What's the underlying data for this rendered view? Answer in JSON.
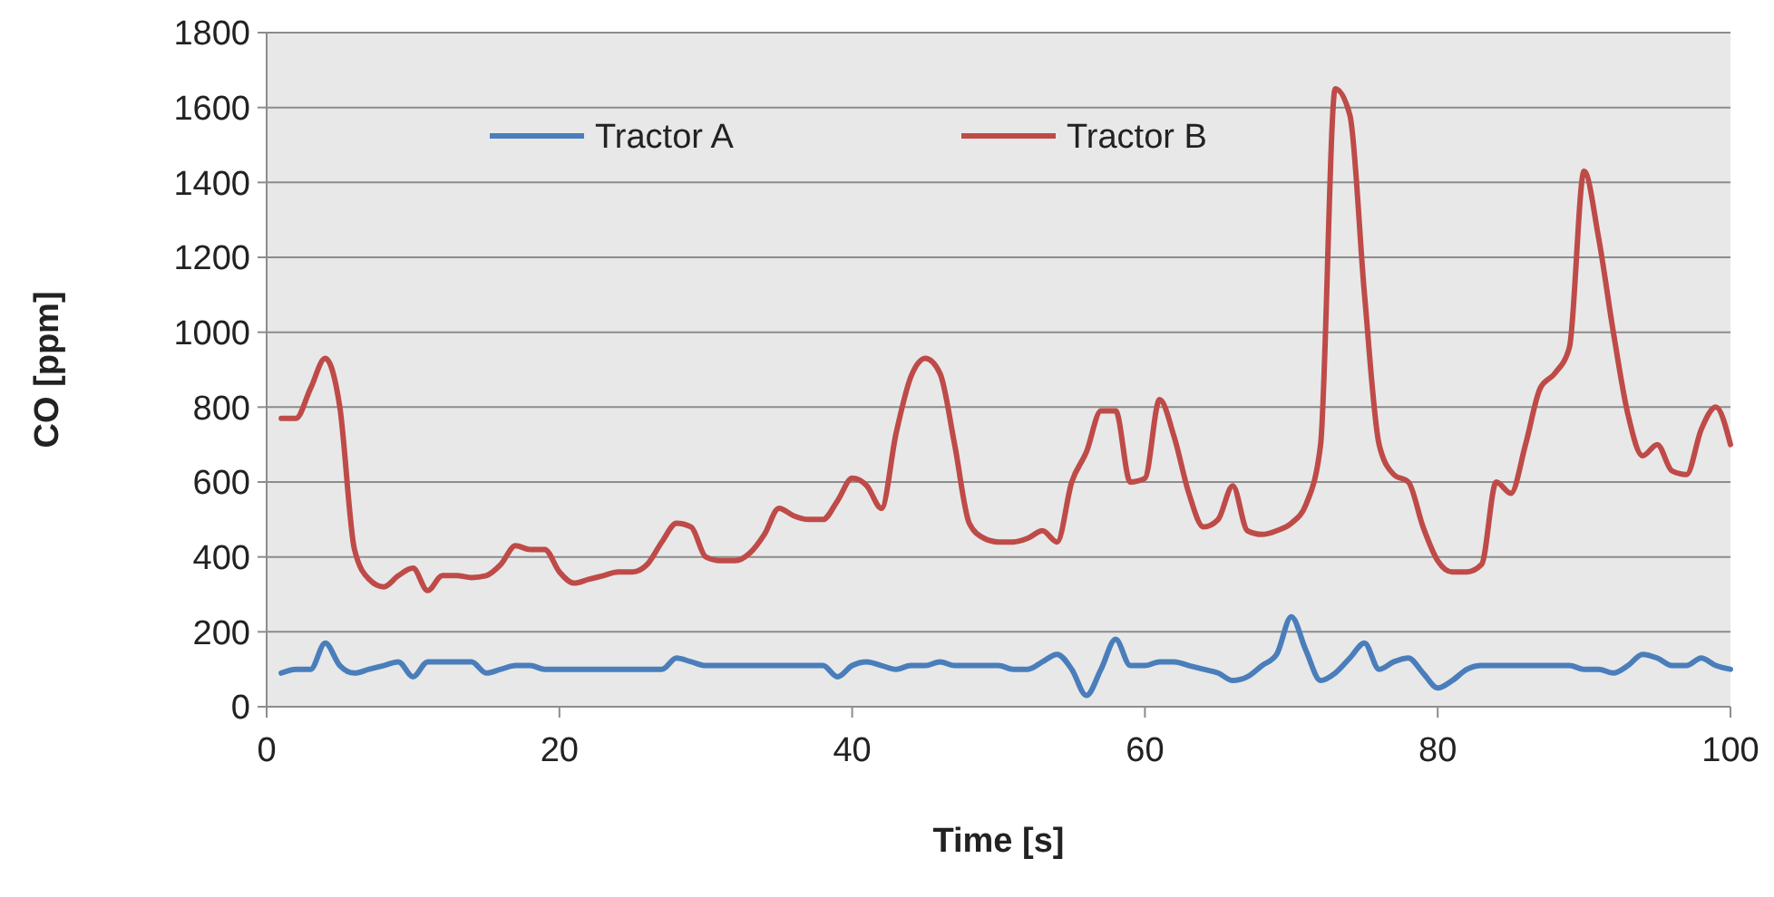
{
  "chart_data": {
    "type": "line",
    "xlabel": "Time [s]",
    "ylabel": "CO [ppm]",
    "x": [
      1,
      2,
      3,
      4,
      5,
      6,
      7,
      8,
      9,
      10,
      11,
      12,
      13,
      14,
      15,
      16,
      17,
      18,
      19,
      20,
      21,
      22,
      23,
      24,
      25,
      26,
      27,
      28,
      29,
      30,
      31,
      32,
      33,
      34,
      35,
      36,
      37,
      38,
      39,
      40,
      41,
      42,
      43,
      44,
      45,
      46,
      47,
      48,
      49,
      50,
      51,
      52,
      53,
      54,
      55,
      56,
      57,
      58,
      59,
      60,
      61,
      62,
      63,
      64,
      65,
      66,
      67,
      68,
      69,
      70,
      71,
      72,
      73,
      74,
      75,
      76,
      77,
      78,
      79,
      80,
      81,
      82,
      83,
      84,
      85,
      86,
      87,
      88,
      89,
      90,
      91,
      92,
      93,
      94,
      95,
      96,
      97,
      98,
      99,
      100
    ],
    "series": [
      {
        "name": "Tractor A",
        "color": "#4a7ebb",
        "values": [
          90,
          100,
          100,
          170,
          110,
          90,
          100,
          110,
          120,
          80,
          120,
          120,
          120,
          120,
          90,
          100,
          110,
          110,
          100,
          100,
          100,
          100,
          100,
          100,
          100,
          100,
          100,
          130,
          120,
          110,
          110,
          110,
          110,
          110,
          110,
          110,
          110,
          110,
          80,
          110,
          120,
          110,
          100,
          110,
          110,
          120,
          110,
          110,
          110,
          110,
          100,
          100,
          120,
          140,
          100,
          30,
          100,
          180,
          110,
          110,
          120,
          120,
          110,
          100,
          90,
          70,
          80,
          110,
          140,
          240,
          150,
          70,
          90,
          130,
          170,
          100,
          120,
          130,
          90,
          50,
          70,
          100,
          110,
          110,
          110,
          110,
          110,
          110,
          110,
          100,
          100,
          90,
          110,
          140,
          130,
          110,
          110,
          130,
          110,
          100
        ]
      },
      {
        "name": "Tractor B",
        "color": "#be4b48",
        "values": [
          770,
          770,
          850,
          930,
          800,
          420,
          340,
          320,
          350,
          370,
          310,
          350,
          350,
          345,
          350,
          380,
          430,
          420,
          420,
          360,
          330,
          340,
          350,
          360,
          360,
          380,
          440,
          490,
          480,
          400,
          390,
          390,
          410,
          460,
          530,
          510,
          500,
          500,
          550,
          610,
          590,
          530,
          730,
          880,
          930,
          890,
          700,
          490,
          450,
          440,
          440,
          450,
          470,
          440,
          600,
          680,
          790,
          790,
          600,
          610,
          820,
          720,
          570,
          480,
          500,
          590,
          470,
          460,
          470,
          490,
          540,
          700,
          1650,
          1580,
          1100,
          700,
          620,
          600,
          480,
          390,
          360,
          360,
          380,
          600,
          570,
          700,
          850,
          890,
          960,
          1430,
          1250,
          1000,
          780,
          670,
          700,
          630,
          620,
          740,
          800,
          700
        ]
      }
    ],
    "xlim": [
      0,
      100
    ],
    "xticks": [
      0,
      20,
      40,
      60,
      80,
      100
    ],
    "ylim": [
      0,
      1800
    ],
    "yticks": [
      0,
      200,
      400,
      600,
      800,
      1000,
      1200,
      1400,
      1600,
      1800
    ],
    "grid": "y",
    "legend": "top",
    "marker": "none",
    "line_style": "solid"
  }
}
